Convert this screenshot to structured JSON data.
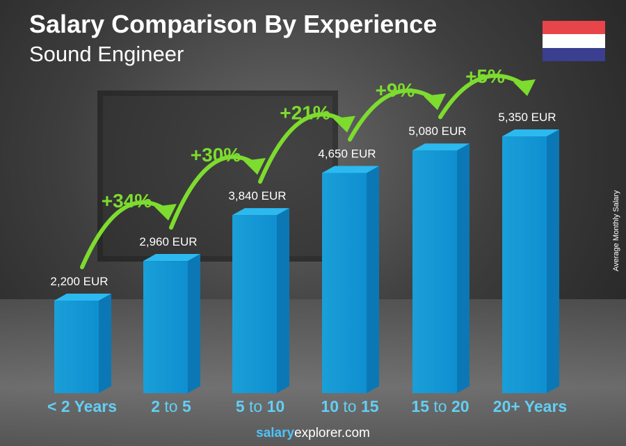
{
  "title": "Salary Comparison By Experience",
  "subtitle": "Sound Engineer",
  "flag_colors": [
    "#e8454a",
    "#ffffff",
    "#3a3f8f"
  ],
  "footer": {
    "brand_bold": "salary",
    "brand_rest": "explorer",
    "tld": ".com"
  },
  "chart_data": {
    "type": "bar",
    "title": "Salary Comparison By Experience",
    "subtitle": "Sound Engineer",
    "ylabel": "Average Monthly Salary",
    "categories": [
      {
        "a": "< 2 Years",
        "b": "",
        "c": ""
      },
      {
        "a": "2",
        "b": " to ",
        "c": "5"
      },
      {
        "a": "5",
        "b": " to ",
        "c": "10"
      },
      {
        "a": "10",
        "b": " to ",
        "c": "15"
      },
      {
        "a": "15",
        "b": " to ",
        "c": "20"
      },
      {
        "a": "20+ Years",
        "b": "",
        "c": ""
      }
    ],
    "values": [
      2200,
      2960,
      3840,
      4650,
      5080,
      5350
    ],
    "value_labels": [
      "2,200 EUR",
      "2,960 EUR",
      "3,840 EUR",
      "4,650 EUR",
      "5,080 EUR",
      "5,350 EUR"
    ],
    "increases": [
      "+34%",
      "+30%",
      "+21%",
      "+9%",
      "+5%"
    ],
    "unit": "EUR",
    "bar_color": "#1aa6e0",
    "increase_color": "#7ddc2e",
    "category_color": "#62cff5"
  }
}
